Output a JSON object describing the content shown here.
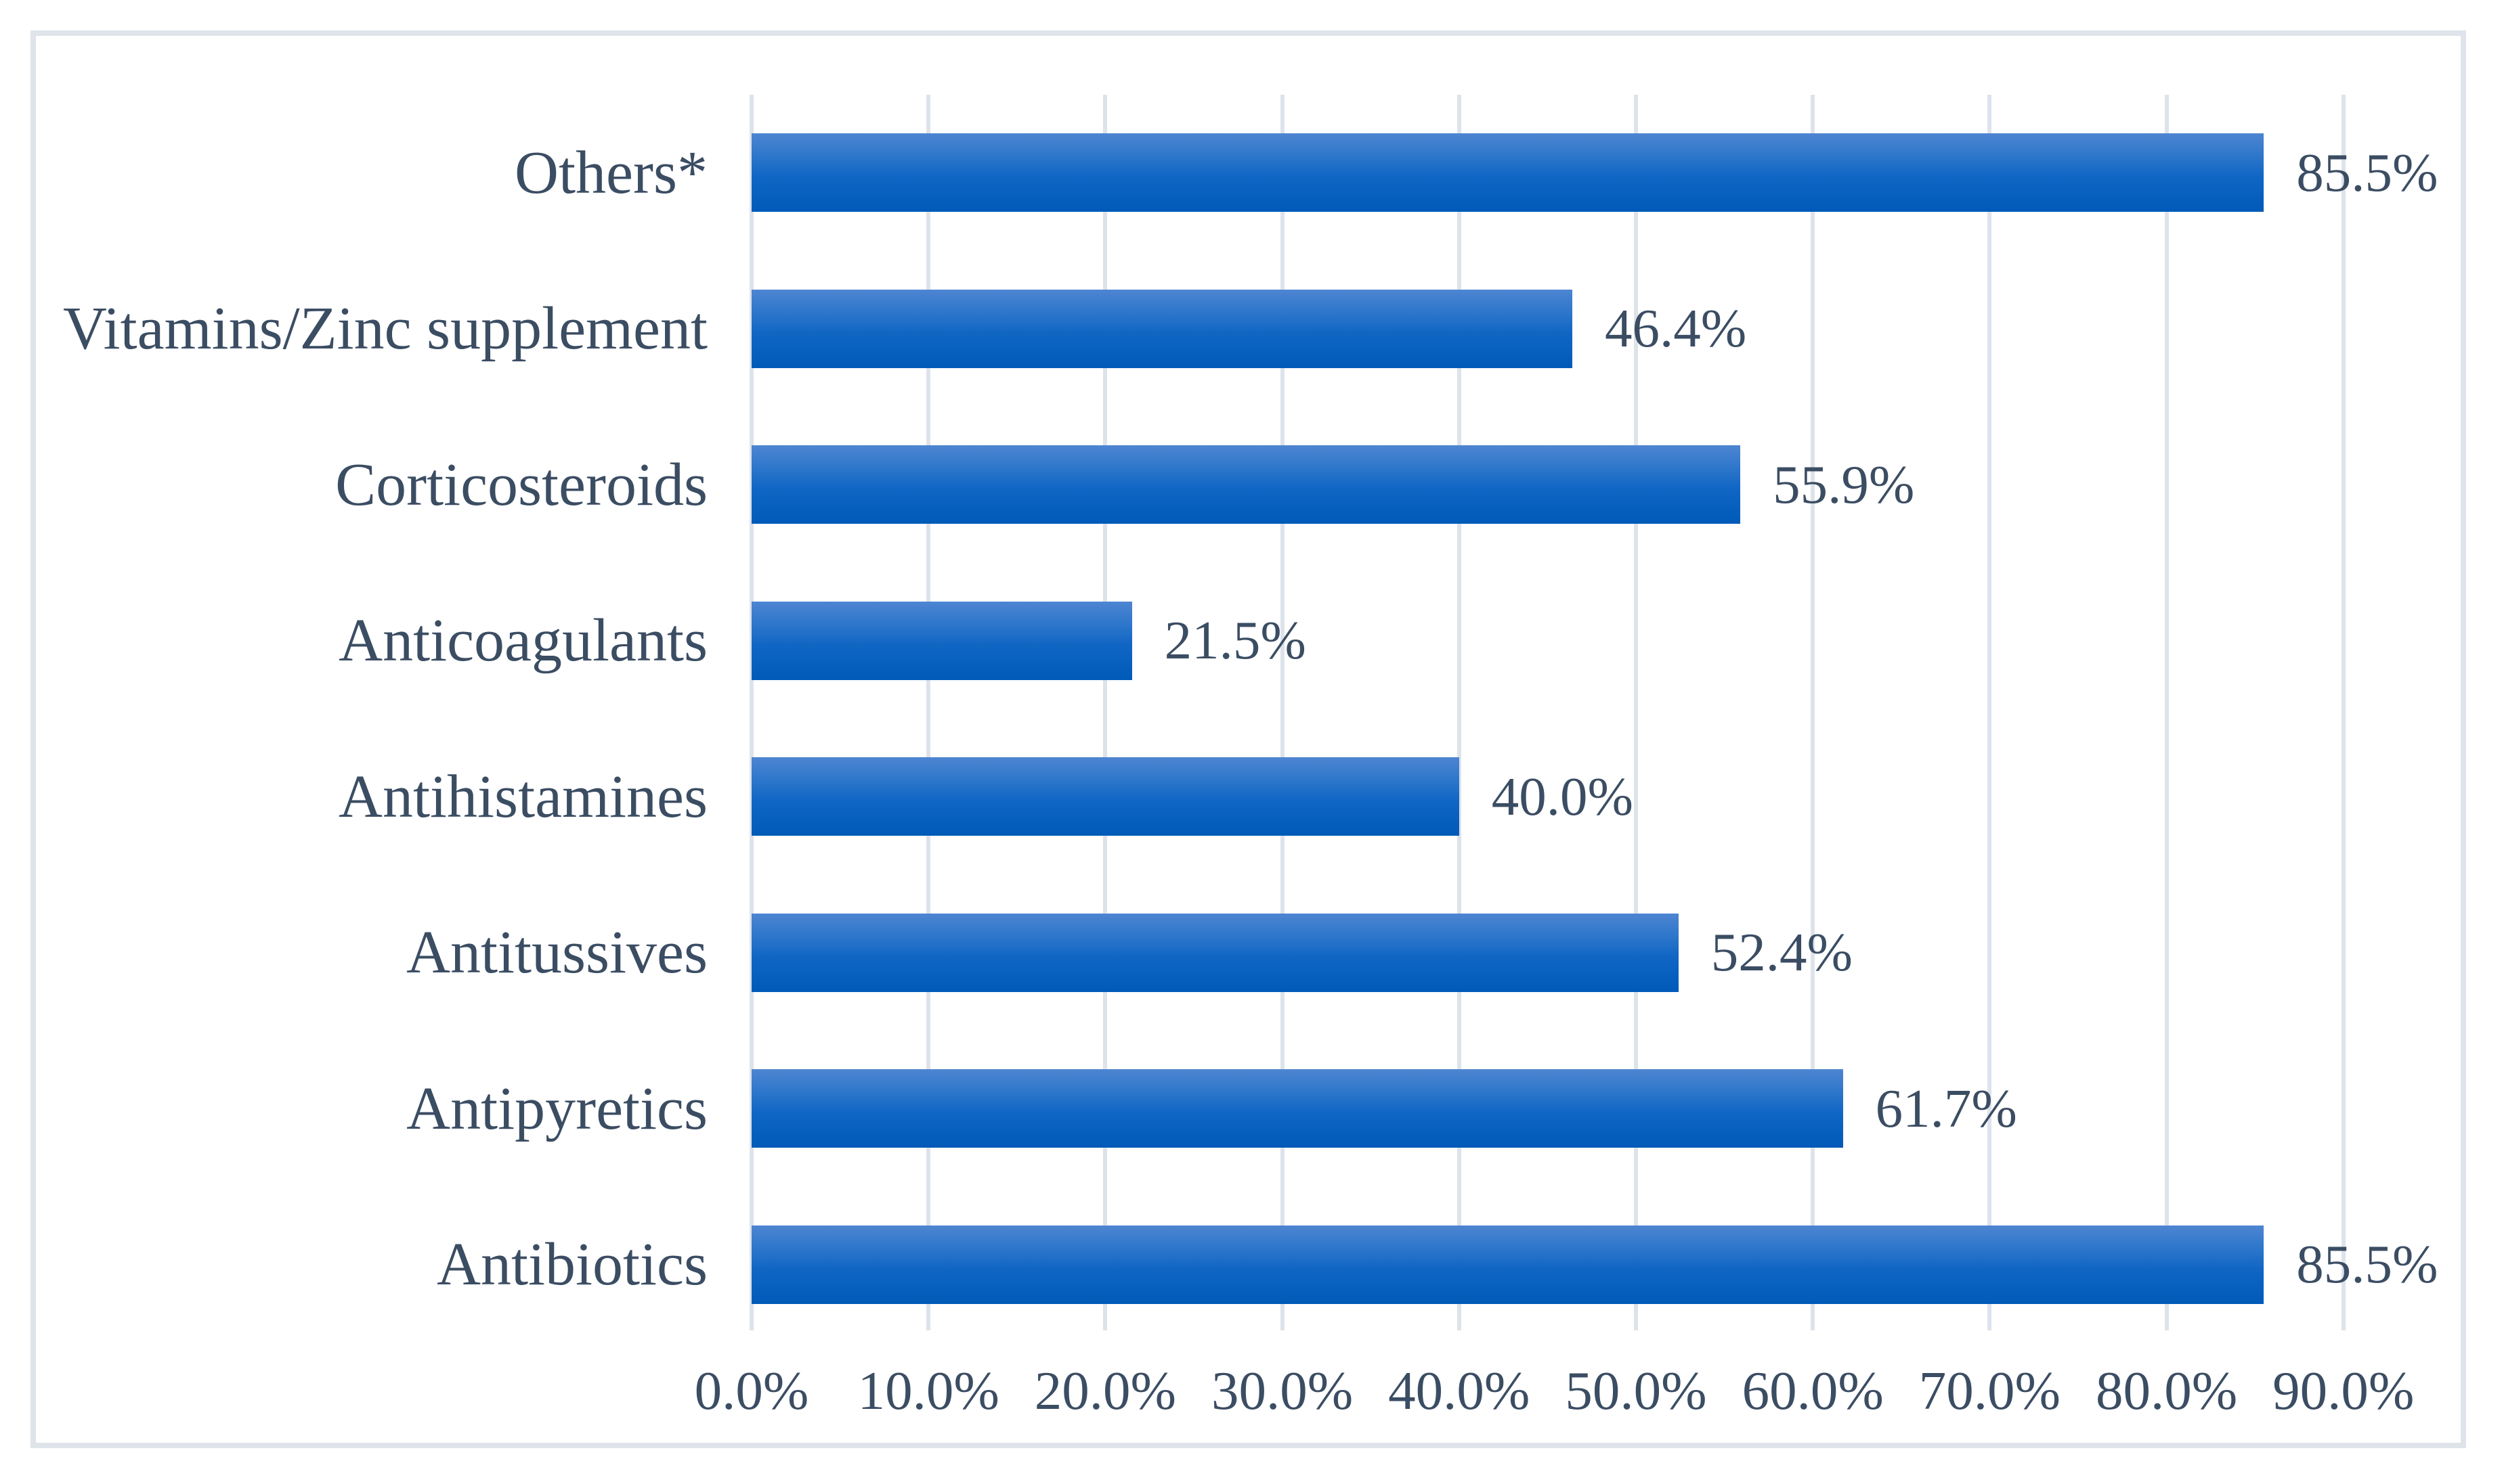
{
  "chart_data": {
    "type": "bar",
    "orientation": "horizontal",
    "title": "",
    "xlabel": "",
    "ylabel": "",
    "categories_top_to_bottom": [
      "Others*",
      "Vitamins/Zinc supplement",
      "Corticosteroids",
      "Anticoagulants",
      "Antihistamines",
      "Antitussives",
      "Antipyretics",
      "Antibiotics"
    ],
    "values": [
      85.5,
      46.4,
      55.9,
      21.5,
      40.0,
      52.4,
      61.7,
      85.5
    ],
    "data_labels": [
      "85.5%",
      "46.4%",
      "55.9%",
      "21.5%",
      "40.0%",
      "52.4%",
      "61.7%",
      "85.5%"
    ],
    "x_ticks": [
      "0.0%",
      "10.0%",
      "20.0%",
      "30.0%",
      "40.0%",
      "50.0%",
      "60.0%",
      "70.0%",
      "80.0%",
      "90.0%"
    ],
    "x_tick_values": [
      0,
      10,
      20,
      30,
      40,
      50,
      60,
      70,
      80,
      90
    ],
    "xlim": [
      0,
      90
    ],
    "grid": "vertical-gridlines-on",
    "legend": "none",
    "colors": {
      "bar_gradient_top": "#4e85d1",
      "bar_gradient_bottom": "#005ab8",
      "label_text": "#3b4d63",
      "gridline": "#dde3ea",
      "frame_border": "#dee4ea",
      "background": "#ffffff"
    }
  }
}
